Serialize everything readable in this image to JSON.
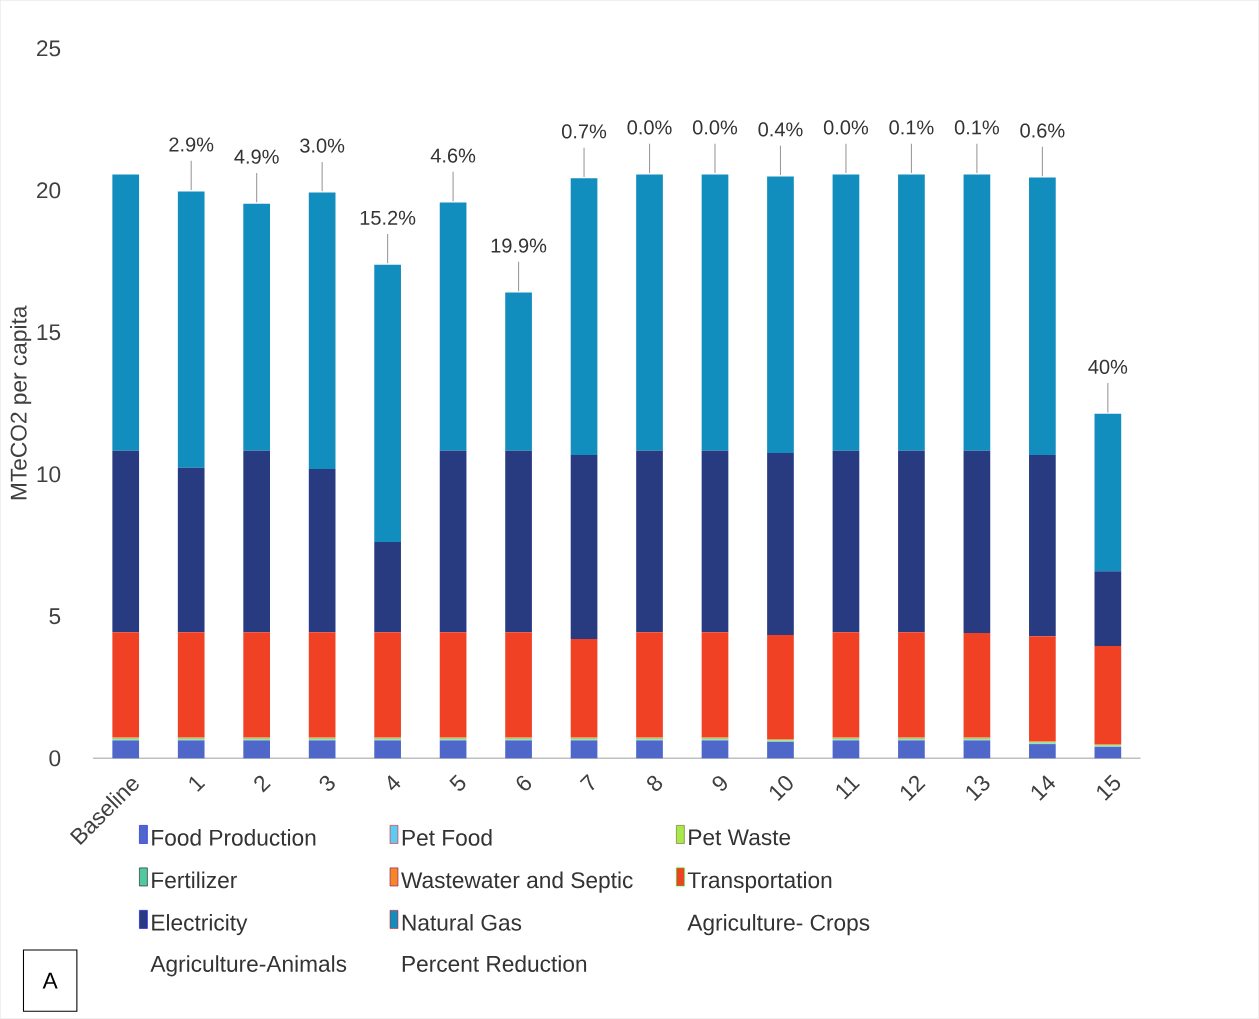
{
  "chart_data": {
    "type": "bar",
    "stacked": true,
    "ylabel": "MTeCO2 per capita",
    "legend": "bottom",
    "grid": false,
    "categories": [
      "Baseline",
      "1",
      "2",
      "3",
      "4",
      "5",
      "6",
      "7",
      "8",
      "9",
      "10",
      "11",
      "12",
      "13",
      "14",
      "15"
    ],
    "ylim": [
      0,
      25
    ],
    "yticks": [
      0,
      5,
      10,
      15,
      20,
      25
    ],
    "series": [
      {
        "name": "Food Production",
        "color": "#4e67c8",
        "values": [
          0.63,
          0.63,
          0.63,
          0.63,
          0.63,
          0.63,
          0.63,
          0.63,
          0.63,
          0.63,
          0.58,
          0.63,
          0.63,
          0.63,
          0.5,
          0.4
        ]
      },
      {
        "name": "Pet Food",
        "color": "#5ecbf0",
        "values": [
          0.02,
          0.02,
          0.02,
          0.02,
          0.02,
          0.02,
          0.02,
          0.02,
          0.02,
          0.02,
          0.02,
          0.02,
          0.02,
          0.02,
          0.02,
          0.02
        ]
      },
      {
        "name": "Pet Waste",
        "color": "#a6e94a",
        "values": [
          0.03,
          0.03,
          0.03,
          0.03,
          0.03,
          0.03,
          0.03,
          0.03,
          0.03,
          0.03,
          0.03,
          0.03,
          0.03,
          0.03,
          0.03,
          0.03
        ]
      },
      {
        "name": "Fertilizer",
        "color": "#52c7a0",
        "values": [
          0.02,
          0.02,
          0.02,
          0.02,
          0.02,
          0.02,
          0.02,
          0.02,
          0.02,
          0.02,
          0.02,
          0.02,
          0.02,
          0.02,
          0.02,
          0.02
        ]
      },
      {
        "name": "Wastewater and Septic",
        "color": "#f7862a",
        "values": [
          0.03,
          0.03,
          0.03,
          0.03,
          0.03,
          0.03,
          0.03,
          0.03,
          0.03,
          0.03,
          0.03,
          0.03,
          0.03,
          0.03,
          0.03,
          0.03
        ]
      },
      {
        "name": "Transportation",
        "color": "#f04124",
        "values": [
          3.71,
          3.71,
          3.71,
          3.71,
          3.71,
          3.71,
          3.71,
          3.47,
          3.71,
          3.71,
          3.66,
          3.71,
          3.71,
          3.68,
          3.7,
          3.45
        ]
      },
      {
        "name": "Electricity",
        "color": "#283a80",
        "values": [
          6.39,
          5.79,
          6.39,
          5.75,
          3.18,
          6.39,
          6.39,
          6.48,
          6.39,
          6.39,
          6.41,
          6.39,
          6.39,
          6.42,
          6.38,
          2.64
        ]
      },
      {
        "name": "Natural Gas",
        "color": "#118dbe",
        "values": [
          9.73,
          9.73,
          8.7,
          9.73,
          9.76,
          8.74,
          5.57,
          9.74,
          9.73,
          9.73,
          9.74,
          9.73,
          9.73,
          9.73,
          9.77,
          5.54
        ]
      },
      {
        "name": "Agriculture- Crops",
        "values": [
          null,
          null,
          null,
          null,
          null,
          null,
          null,
          null,
          null,
          null,
          null,
          null,
          null,
          null,
          null,
          null
        ]
      },
      {
        "name": "Agriculture-Animals",
        "values": [
          null,
          null,
          null,
          null,
          null,
          null,
          null,
          null,
          null,
          null,
          null,
          null,
          null,
          null,
          null,
          null
        ]
      },
      {
        "name": "Percent Reduction",
        "values": [
          null,
          null,
          null,
          null,
          null,
          null,
          null,
          null,
          null,
          null,
          null,
          null,
          null,
          null,
          null,
          null
        ]
      }
    ],
    "annotations": [
      {
        "text": "2.9%",
        "x": "1",
        "y": 19.96
      },
      {
        "text": "4.9%",
        "x": "2",
        "y": 19.53
      },
      {
        "text": "3.0%",
        "x": "3",
        "y": 19.92
      },
      {
        "text": "15.2%",
        "x": "4",
        "y": 17.38
      },
      {
        "text": "4.6%",
        "x": "5",
        "y": 19.57
      },
      {
        "text": "19.9%",
        "x": "6",
        "y": 16.4
      },
      {
        "text": "0.7%",
        "x": "7",
        "y": 20.42
      },
      {
        "text": "0.0%",
        "x": "8",
        "y": 20.56
      },
      {
        "text": "0.0%",
        "x": "9",
        "y": 20.56
      },
      {
        "text": "0.4%",
        "x": "10",
        "y": 20.49
      },
      {
        "text": "0.0%",
        "x": "11",
        "y": 20.56
      },
      {
        "text": "0.1%",
        "x": "12",
        "y": 20.56
      },
      {
        "text": "0.1%",
        "x": "13",
        "y": 20.56
      },
      {
        "text": "0.6%",
        "x": "14",
        "y": 20.45
      },
      {
        "text": "40%",
        "x": "15",
        "y": 12.13
      },
      "A"
    ]
  }
}
